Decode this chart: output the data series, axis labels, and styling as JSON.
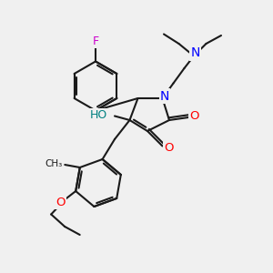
{
  "bg_color": "#f0f0f0",
  "bond_color": "#1a1a1a",
  "N_color": "#0000ff",
  "O_color": "#ff0000",
  "F_color": "#cc00cc",
  "HO_color": "#008080",
  "line_width": 1.5,
  "figsize": [
    3.0,
    3.0
  ],
  "dpi": 100,
  "xlim": [
    0,
    10
  ],
  "ylim": [
    0,
    10
  ]
}
